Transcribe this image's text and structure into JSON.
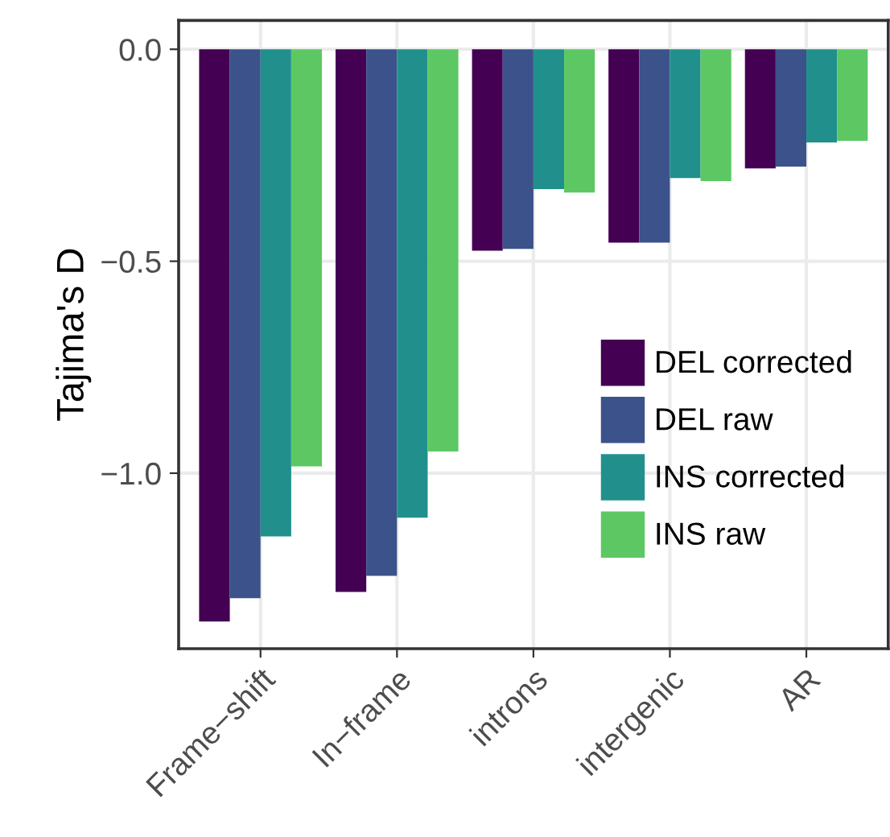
{
  "chart_data": {
    "type": "bar",
    "ylabel": "Tajima's D",
    "categories": [
      "Frame−shift",
      "In−frame",
      "introns",
      "intergenic",
      "AR"
    ],
    "series": [
      {
        "name": "DEL corrected",
        "color": "#440154",
        "values": [
          -1.35,
          -1.28,
          -0.475,
          -0.456,
          -0.281
        ]
      },
      {
        "name": "DEL raw",
        "color": "#3b528b",
        "values": [
          -1.295,
          -1.242,
          -0.471,
          -0.456,
          -0.277
        ]
      },
      {
        "name": "INS corrected",
        "color": "#21908c",
        "values": [
          -1.149,
          -1.105,
          -0.33,
          -0.304,
          -0.22
        ]
      },
      {
        "name": "INS raw",
        "color": "#5dc863",
        "values": [
          -0.984,
          -0.949,
          -0.338,
          -0.311,
          -0.216
        ]
      }
    ],
    "ylim": [
      -1.414,
      0.068
    ],
    "yticks": [
      {
        "value": 0,
        "label": "0.0"
      },
      {
        "value": -0.5,
        "label": "−0.5"
      },
      {
        "value": -1,
        "label": "−1.0"
      }
    ],
    "grid": true,
    "legend": "right"
  }
}
